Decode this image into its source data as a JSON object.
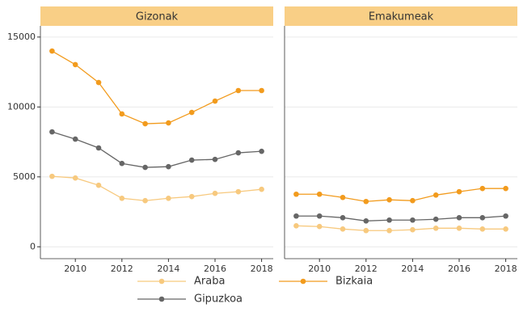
{
  "chart_data": {
    "type": "line",
    "x": [
      2009,
      2010,
      2011,
      2012,
      2013,
      2014,
      2015,
      2016,
      2017,
      2018
    ],
    "xlim": [
      2008.5,
      2018.5
    ],
    "xticks": [
      2010,
      2012,
      2014,
      2016,
      2018
    ],
    "ylim": [
      -850,
      15800
    ],
    "yticks": [
      0,
      5000,
      10000,
      15000
    ],
    "grid": true,
    "legend": "bottom",
    "series": [
      {
        "name": "Araba",
        "color": "#f7c97e"
      },
      {
        "name": "Bizkaia",
        "color": "#f29b1d"
      },
      {
        "name": "Gipuzkoa",
        "color": "#666666"
      }
    ],
    "panels": [
      {
        "title": "Gizonak",
        "values": [
          [
            5040,
            4920,
            4400,
            3470,
            3300,
            3470,
            3590,
            3820,
            3940,
            4110
          ],
          [
            14000,
            13030,
            11750,
            9500,
            8800,
            8860,
            9610,
            10420,
            11175,
            11175
          ],
          [
            8220,
            7700,
            7070,
            5960,
            5680,
            5730,
            6200,
            6250,
            6720,
            6830
          ]
        ]
      },
      {
        "title": "Emakumeak",
        "values": [
          [
            1500,
            1450,
            1270,
            1160,
            1160,
            1220,
            1330,
            1330,
            1270,
            1270
          ],
          [
            3760,
            3760,
            3530,
            3240,
            3360,
            3300,
            3700,
            3940,
            4170,
            4170
          ],
          [
            2200,
            2200,
            2080,
            1850,
            1910,
            1910,
            1970,
            2080,
            2080,
            2200
          ]
        ]
      }
    ]
  }
}
